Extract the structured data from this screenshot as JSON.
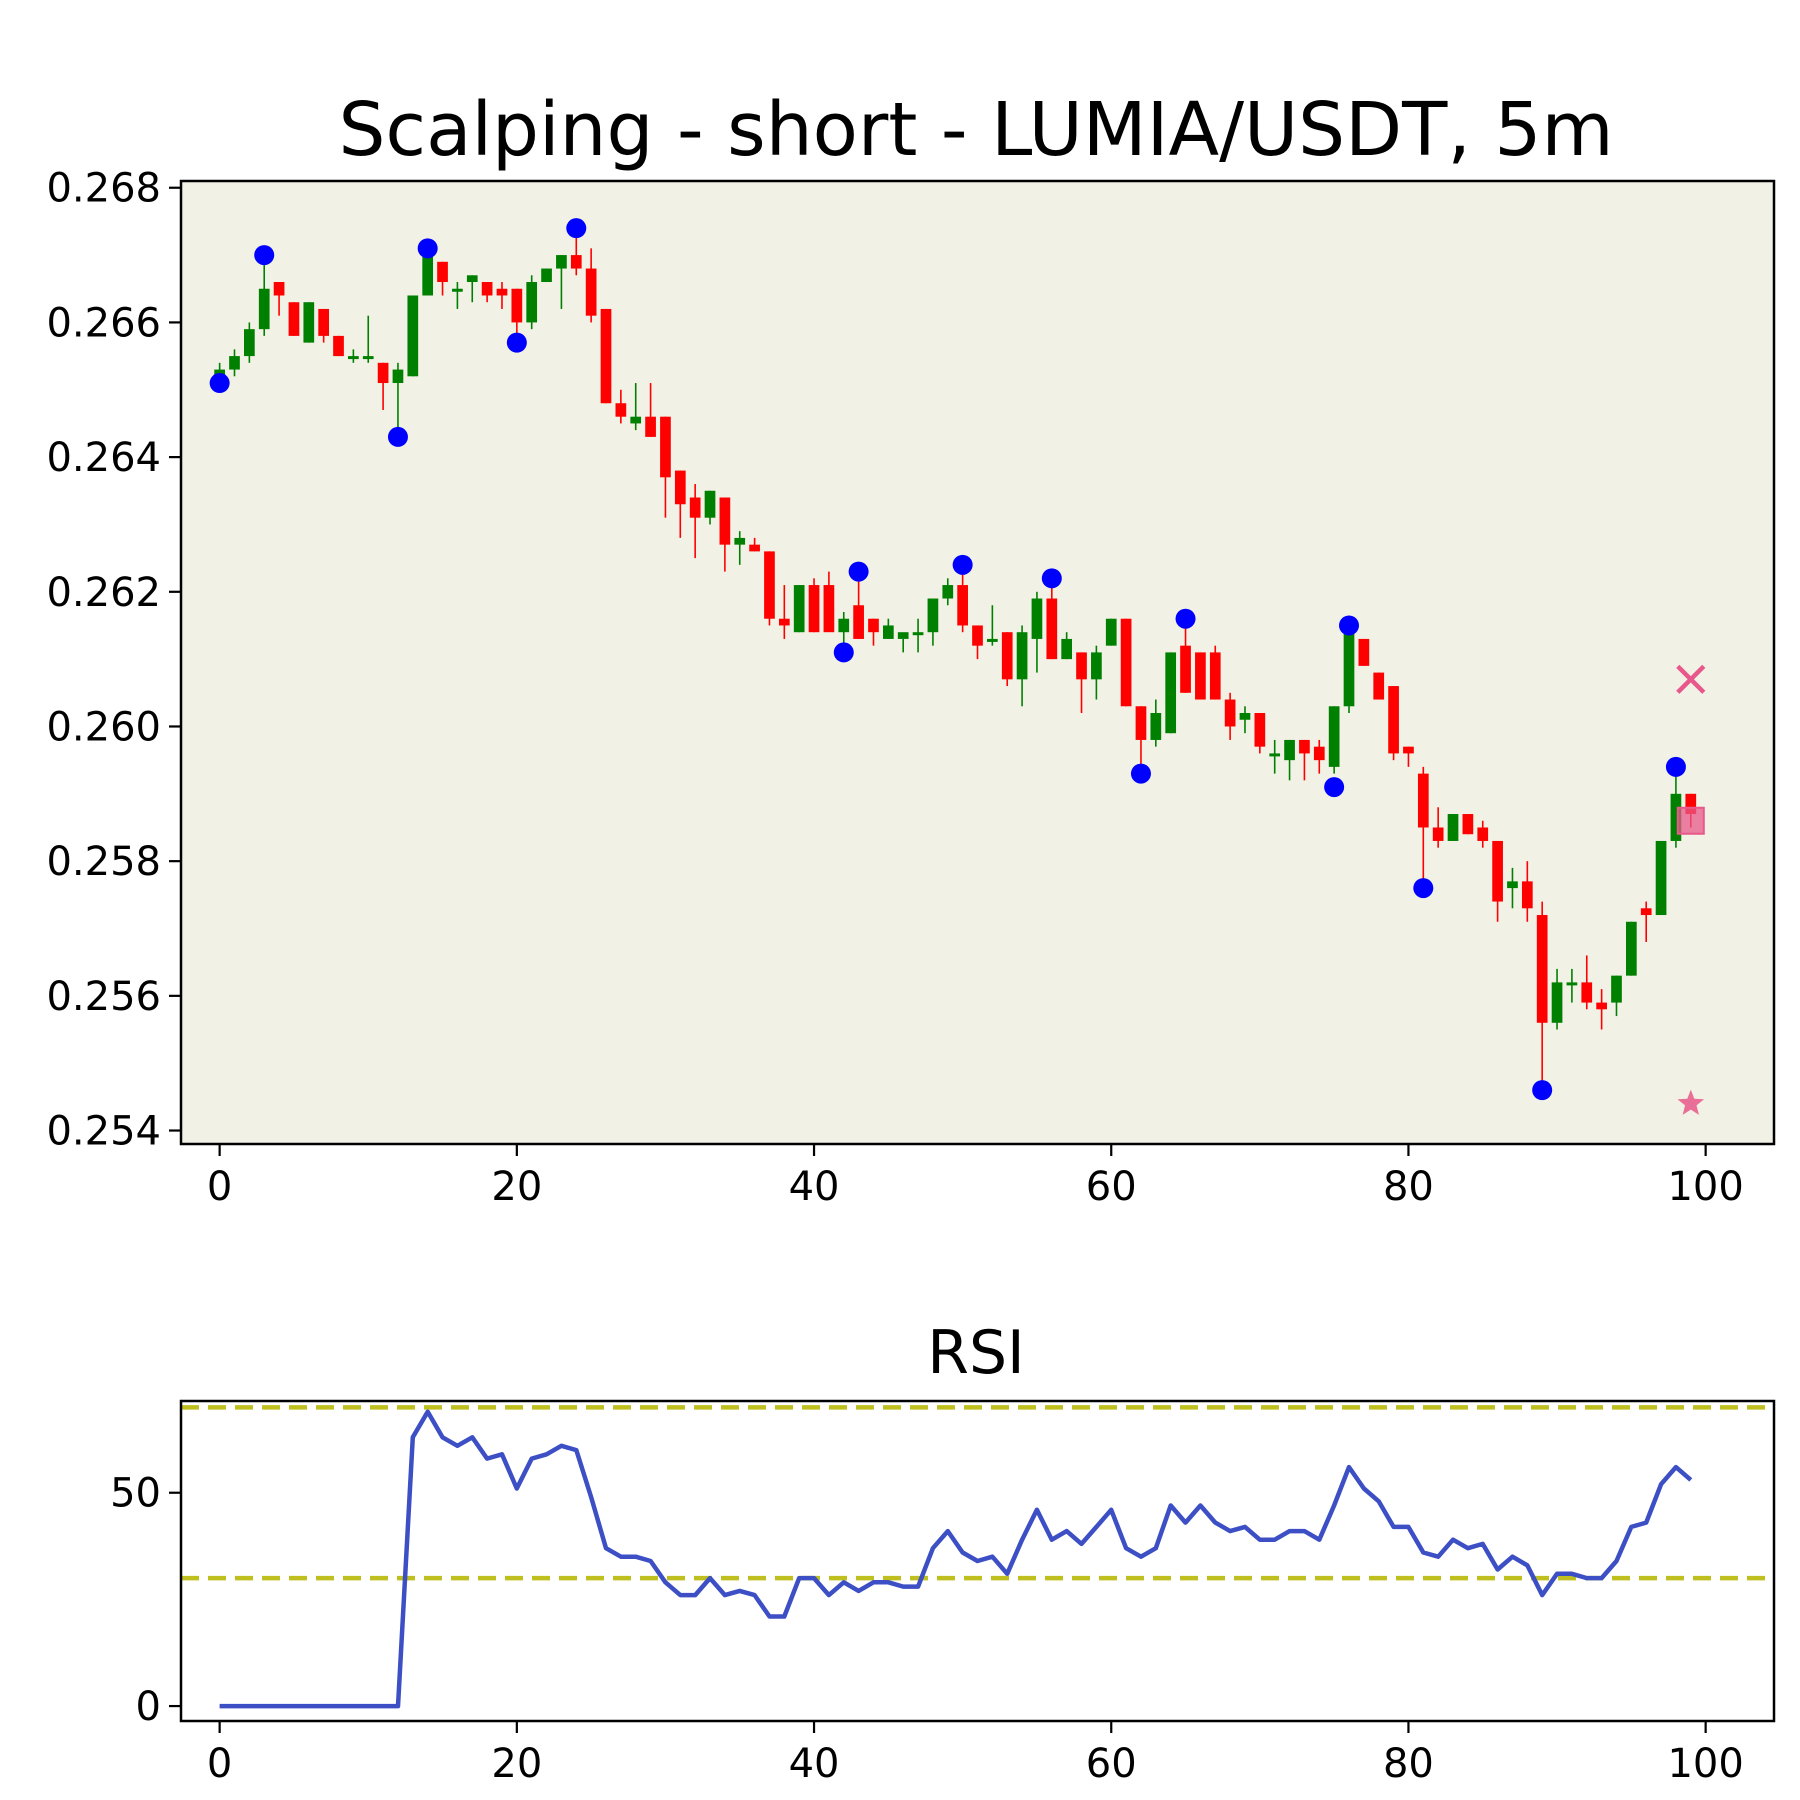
{
  "chart_data": [
    {
      "type": "candlestick",
      "title": "Scalping - short - LUMIA/USDT, 5m",
      "xlim": [
        -2.6,
        104.6
      ],
      "ylim": [
        0.2538,
        0.2681
      ],
      "xticks": [
        0,
        20,
        40,
        60,
        80,
        100
      ],
      "yticks": [
        0.254,
        0.256,
        0.258,
        0.26,
        0.262,
        0.264,
        0.266,
        0.268
      ],
      "xtick_labels": [
        "0",
        "20",
        "40",
        "60",
        "80",
        "100"
      ],
      "ytick_labels": [
        "0.254",
        "0.256",
        "0.258",
        "0.260",
        "0.262",
        "0.264",
        "0.266",
        "0.268"
      ],
      "up_color": "#008000",
      "down_color": "#ff0000",
      "background": "#f2f1e6",
      "pivot_color": "#0000ff",
      "candles": [
        [
          0,
          0.2652,
          0.2654,
          0.2651,
          0.2653
        ],
        [
          1,
          0.2653,
          0.2656,
          0.2652,
          0.2655
        ],
        [
          2,
          0.2655,
          0.266,
          0.2654,
          0.2659
        ],
        [
          3,
          0.2659,
          0.267,
          0.2658,
          0.2665
        ],
        [
          4,
          0.2666,
          0.2666,
          0.2661,
          0.2664
        ],
        [
          5,
          0.2663,
          0.2663,
          0.2658,
          0.2658
        ],
        [
          6,
          0.2657,
          0.2663,
          0.2657,
          0.2663
        ],
        [
          7,
          0.2662,
          0.2662,
          0.2657,
          0.2658
        ],
        [
          8,
          0.2658,
          0.2658,
          0.2655,
          0.2655
        ],
        [
          9,
          0.2655,
          0.2656,
          0.2654,
          0.2655
        ],
        [
          10,
          0.2655,
          0.2661,
          0.2654,
          0.2655
        ],
        [
          11,
          0.2654,
          0.2654,
          0.2647,
          0.2651
        ],
        [
          12,
          0.2651,
          0.2654,
          0.2643,
          0.2653
        ],
        [
          13,
          0.2652,
          0.2664,
          0.2652,
          0.2664
        ],
        [
          14,
          0.2664,
          0.2671,
          0.2664,
          0.267
        ],
        [
          15,
          0.2669,
          0.2669,
          0.2664,
          0.2666
        ],
        [
          16,
          0.2665,
          0.2666,
          0.2662,
          0.2665
        ],
        [
          17,
          0.2666,
          0.2667,
          0.2663,
          0.2667
        ],
        [
          18,
          0.2666,
          0.2666,
          0.2663,
          0.2664
        ],
        [
          19,
          0.2665,
          0.2666,
          0.2662,
          0.2664
        ],
        [
          20,
          0.2665,
          0.2665,
          0.2657,
          0.266
        ],
        [
          21,
          0.266,
          0.2667,
          0.2659,
          0.2666
        ],
        [
          22,
          0.2666,
          0.2668,
          0.2666,
          0.2668
        ],
        [
          23,
          0.2668,
          0.267,
          0.2662,
          0.267
        ],
        [
          24,
          0.267,
          0.2674,
          0.2667,
          0.2668
        ],
        [
          25,
          0.2668,
          0.2671,
          0.266,
          0.2661
        ],
        [
          26,
          0.2662,
          0.2662,
          0.2648,
          0.2648
        ],
        [
          27,
          0.2648,
          0.265,
          0.2645,
          0.2646
        ],
        [
          28,
          0.2645,
          0.2651,
          0.2644,
          0.2646
        ],
        [
          29,
          0.2646,
          0.2651,
          0.2643,
          0.2643
        ],
        [
          30,
          0.2646,
          0.2646,
          0.2631,
          0.2637
        ],
        [
          31,
          0.2638,
          0.2638,
          0.2628,
          0.2633
        ],
        [
          32,
          0.2634,
          0.2636,
          0.2625,
          0.2631
        ],
        [
          33,
          0.2631,
          0.2635,
          0.263,
          0.2635
        ],
        [
          34,
          0.2634,
          0.2634,
          0.2623,
          0.2627
        ],
        [
          35,
          0.2627,
          0.2629,
          0.2624,
          0.2628
        ],
        [
          36,
          0.2627,
          0.2628,
          0.2626,
          0.2626
        ],
        [
          37,
          0.2626,
          0.2626,
          0.2615,
          0.2616
        ],
        [
          38,
          0.2616,
          0.2621,
          0.2613,
          0.2615
        ],
        [
          39,
          0.2614,
          0.2621,
          0.2614,
          0.2621
        ],
        [
          40,
          0.2621,
          0.2622,
          0.2614,
          0.2614
        ],
        [
          41,
          0.2621,
          0.2623,
          0.2615,
          0.2614
        ],
        [
          42,
          0.2614,
          0.2617,
          0.2611,
          0.2616
        ],
        [
          43,
          0.2618,
          0.2623,
          0.2613,
          0.2613
        ],
        [
          44,
          0.2616,
          0.2616,
          0.2612,
          0.2614
        ],
        [
          45,
          0.2613,
          0.2616,
          0.2613,
          0.2615
        ],
        [
          46,
          0.2613,
          0.2613,
          0.2611,
          0.2614
        ],
        [
          47,
          0.2614,
          0.2616,
          0.2611,
          0.2614
        ],
        [
          48,
          0.2614,
          0.2619,
          0.2612,
          0.2619
        ],
        [
          49,
          0.2619,
          0.2622,
          0.2618,
          0.2621
        ],
        [
          50,
          0.2621,
          0.2623,
          0.2614,
          0.2615
        ],
        [
          51,
          0.2615,
          0.2615,
          0.261,
          0.2612
        ],
        [
          52,
          0.2613,
          0.2618,
          0.2612,
          0.2613
        ],
        [
          53,
          0.2614,
          0.2614,
          0.2606,
          0.2607
        ],
        [
          54,
          0.2607,
          0.2615,
          0.2603,
          0.2614
        ],
        [
          55,
          0.2613,
          0.262,
          0.2608,
          0.2619
        ],
        [
          56,
          0.2619,
          0.2621,
          0.261,
          0.261
        ],
        [
          57,
          0.261,
          0.2614,
          0.261,
          0.2613
        ],
        [
          58,
          0.2611,
          0.2611,
          0.2602,
          0.2607
        ],
        [
          59,
          0.2607,
          0.2612,
          0.2604,
          0.2611
        ],
        [
          60,
          0.2612,
          0.2616,
          0.2612,
          0.2616
        ],
        [
          61,
          0.2616,
          0.2616,
          0.2603,
          0.2603
        ],
        [
          62,
          0.2603,
          0.2603,
          0.2594,
          0.2598
        ],
        [
          63,
          0.2598,
          0.2604,
          0.2597,
          0.2602
        ],
        [
          64,
          0.2599,
          0.2611,
          0.2599,
          0.2611
        ],
        [
          65,
          0.2612,
          0.2616,
          0.2605,
          0.2605
        ],
        [
          66,
          0.2611,
          0.2611,
          0.2604,
          0.2604
        ],
        [
          67,
          0.2611,
          0.2612,
          0.2604,
          0.2604
        ],
        [
          68,
          0.2604,
          0.2605,
          0.2598,
          0.26
        ],
        [
          69,
          0.2601,
          0.2603,
          0.2599,
          0.2602
        ],
        [
          70,
          0.2602,
          0.2602,
          0.2596,
          0.2597
        ],
        [
          71,
          0.2596,
          0.2598,
          0.2593,
          0.2596
        ],
        [
          72,
          0.2595,
          0.2598,
          0.2592,
          0.2598
        ],
        [
          73,
          0.2598,
          0.2598,
          0.2592,
          0.2596
        ],
        [
          74,
          0.2597,
          0.2598,
          0.2593,
          0.2595
        ],
        [
          75,
          0.2594,
          0.2603,
          0.2593,
          0.2603
        ],
        [
          76,
          0.2603,
          0.2615,
          0.2602,
          0.2614
        ],
        [
          77,
          0.2613,
          0.2613,
          0.2609,
          0.2609
        ],
        [
          78,
          0.2608,
          0.2608,
          0.2604,
          0.2604
        ],
        [
          79,
          0.2606,
          0.2606,
          0.2595,
          0.2596
        ],
        [
          80,
          0.2597,
          0.2597,
          0.2594,
          0.2596
        ],
        [
          81,
          0.2593,
          0.2594,
          0.2577,
          0.2585
        ],
        [
          82,
          0.2585,
          0.2588,
          0.2582,
          0.2583
        ],
        [
          83,
          0.2583,
          0.2587,
          0.2583,
          0.2587
        ],
        [
          84,
          0.2587,
          0.2587,
          0.2584,
          0.2584
        ],
        [
          85,
          0.2585,
          0.2586,
          0.2582,
          0.2583
        ],
        [
          86,
          0.2583,
          0.2583,
          0.2571,
          0.2574
        ],
        [
          87,
          0.2576,
          0.2579,
          0.2573,
          0.2577
        ],
        [
          88,
          0.2577,
          0.258,
          0.2571,
          0.2573
        ],
        [
          89,
          0.2572,
          0.2574,
          0.2547,
          0.2556
        ],
        [
          90,
          0.2556,
          0.2564,
          0.2555,
          0.2562
        ],
        [
          91,
          0.2562,
          0.2564,
          0.2559,
          0.2562
        ],
        [
          92,
          0.2562,
          0.2566,
          0.2558,
          0.2559
        ],
        [
          93,
          0.2559,
          0.2561,
          0.2555,
          0.2558
        ],
        [
          94,
          0.2559,
          0.2563,
          0.2557,
          0.2563
        ],
        [
          95,
          0.2563,
          0.2571,
          0.2563,
          0.2571
        ],
        [
          96,
          0.2573,
          0.2574,
          0.2568,
          0.2572
        ],
        [
          97,
          0.2572,
          0.2583,
          0.2572,
          0.2583
        ],
        [
          98,
          0.2583,
          0.2593,
          0.2582,
          0.259
        ],
        [
          99,
          0.259,
          0.259,
          0.2585,
          0.2587
        ]
      ],
      "pivots": [
        {
          "x": 0,
          "y": 0.2651
        },
        {
          "x": 3,
          "y": 0.267
        },
        {
          "x": 12,
          "y": 0.2643
        },
        {
          "x": 14,
          "y": 0.2671
        },
        {
          "x": 20,
          "y": 0.2657
        },
        {
          "x": 24,
          "y": 0.2674
        },
        {
          "x": 42,
          "y": 0.2611
        },
        {
          "x": 43,
          "y": 0.2623
        },
        {
          "x": 50,
          "y": 0.2624
        },
        {
          "x": 56,
          "y": 0.2622
        },
        {
          "x": 62,
          "y": 0.2593
        },
        {
          "x": 65,
          "y": 0.2616
        },
        {
          "x": 75,
          "y": 0.2591
        },
        {
          "x": 76,
          "y": 0.2615
        },
        {
          "x": 81,
          "y": 0.2576
        },
        {
          "x": 89,
          "y": 0.2546
        },
        {
          "x": 98,
          "y": 0.2594
        }
      ],
      "trade_markers": [
        {
          "shape": "x",
          "x": 99,
          "y": 0.2607,
          "color": "#e8588a"
        },
        {
          "shape": "square",
          "x": 99,
          "y": 0.2586,
          "color": "#e8588a"
        },
        {
          "shape": "star",
          "x": 99,
          "y": 0.2544,
          "color": "#e8588a"
        }
      ]
    },
    {
      "type": "line",
      "title": "RSI",
      "xlim": [
        -2.6,
        104.6
      ],
      "ylim": [
        -3.5,
        71.5
      ],
      "xticks": [
        0,
        20,
        40,
        60,
        80,
        100
      ],
      "yticks": [
        0,
        50
      ],
      "xtick_labels": [
        "0",
        "20",
        "40",
        "60",
        "80",
        "100"
      ],
      "ytick_labels": [
        "0",
        "50"
      ],
      "line_color": "#3d4fc4",
      "threshold_color": "#bfbf1f",
      "thresholds": [
        70,
        30
      ],
      "values": [
        0,
        0,
        0,
        0,
        0,
        0,
        0,
        0,
        0,
        0,
        0,
        0,
        0,
        63,
        69,
        63,
        61,
        63,
        58,
        59,
        51,
        58,
        59,
        61,
        60,
        49,
        37,
        35,
        35,
        34,
        29,
        26,
        26,
        30,
        26,
        27,
        26,
        21,
        21,
        30,
        30,
        26,
        29,
        27,
        29,
        29,
        28,
        28,
        37,
        41,
        36,
        34,
        35,
        31,
        39,
        46,
        39,
        41,
        38,
        42,
        46,
        37,
        35,
        37,
        47,
        43,
        47,
        43,
        41,
        42,
        39,
        39,
        41,
        41,
        39,
        47,
        56,
        51,
        48,
        42,
        42,
        36,
        35,
        39,
        37,
        38,
        32,
        35,
        33,
        26,
        31,
        31,
        30,
        30,
        34,
        42,
        43,
        52,
        56,
        53
      ]
    }
  ]
}
